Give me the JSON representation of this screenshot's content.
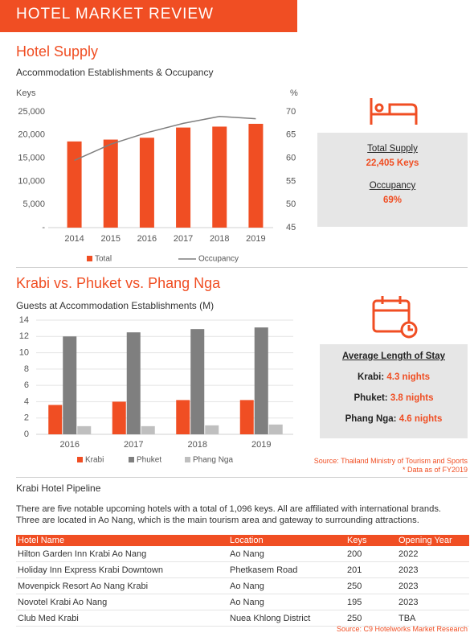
{
  "header": {
    "title": "HOTEL MARKET REVIEW"
  },
  "supply": {
    "title": "Hotel Supply",
    "stats": [
      {
        "label": "Total Supply",
        "value": "22,405 Keys"
      },
      {
        "label": "Occupancy",
        "value": "69%"
      }
    ]
  },
  "comparison": {
    "title": "Krabi vs. Phuket vs. Phang Nga",
    "stats_title": "Average Length of Stay",
    "stats": [
      {
        "label": "Krabi:",
        "value": "4.3 nights"
      },
      {
        "label": "Phuket:",
        "value": "3.8 nights"
      },
      {
        "label": "Phang Nga:",
        "value": "4.6 nights"
      }
    ],
    "source": "Source: Thailand Ministry of Tourism and Sports",
    "note": "* Data as of FY2019"
  },
  "pipeline": {
    "title": "Krabi Hotel Pipeline",
    "text": "There are five notable upcoming hotels with a total of 1,096 keys. All are affiliated with international brands. Three are located in Ao Nang, which is the main tourism area and gateway to surrounding attractions.",
    "table": {
      "columns": [
        "Hotel Name",
        "Location",
        "Keys",
        "Opening Year"
      ],
      "rows": [
        [
          "Hilton Garden Inn Krabi Ao Nang",
          "Ao Nang",
          200,
          2022
        ],
        [
          "Holiday Inn Express Krabi Downtown",
          "Phetkasem Road",
          201,
          2023
        ],
        [
          "Movenpick Resort Ao Nang Krabi",
          "Ao Nang",
          250,
          2023
        ],
        [
          "Novotel Krabi Ao Nang",
          "Ao Nang",
          195,
          2023
        ],
        [
          "Club Med Krabi",
          "Nuea Khlong District",
          250,
          "TBA"
        ]
      ]
    },
    "source": "Source: C9 Hotelworks Market Research"
  },
  "chart_data": [
    {
      "type": "bar",
      "title": "Accommodation Establishments & Occupancy",
      "y_label": "Keys",
      "y2_label": "%",
      "categories": [
        "2014",
        "2015",
        "2016",
        "2017",
        "2018",
        "2019"
      ],
      "series": [
        {
          "name": "Total",
          "color": "#f04e23",
          "values": [
            18600,
            19000,
            19400,
            21600,
            21800,
            22405
          ]
        },
        {
          "name": "Occupancy",
          "type": "line",
          "axis": "y2",
          "color": "#7f7f7f",
          "values": [
            59.5,
            63,
            65.5,
            67.5,
            69,
            68.5
          ]
        }
      ],
      "ylim": [
        0,
        25000
      ],
      "yticks": [
        {
          "value": 0,
          "label": "-"
        },
        {
          "value": 5000,
          "label": "5,000"
        },
        {
          "value": 10000,
          "label": "10,000"
        },
        {
          "value": 15000,
          "label": "15,000"
        },
        {
          "value": 20000,
          "label": "20,000"
        },
        {
          "value": 25000,
          "label": "25,000"
        }
      ],
      "y2lim": [
        45,
        70
      ],
      "y2ticks": [
        45,
        50,
        55,
        60,
        65,
        70
      ],
      "grid": false
    },
    {
      "type": "bar",
      "title": "Guests at Accommodation Establishments (M)",
      "categories": [
        "2016",
        "2017",
        "2018",
        "2019"
      ],
      "series": [
        {
          "name": "Krabi",
          "color": "#f04e23",
          "values": [
            3.6,
            4.0,
            4.2,
            4.2
          ]
        },
        {
          "name": "Phuket",
          "color": "#7f7f7f",
          "values": [
            12.0,
            12.5,
            12.9,
            13.1
          ]
        },
        {
          "name": "Phang Nga",
          "color": "#bfbfbf",
          "values": [
            1.0,
            1.0,
            1.1,
            1.2
          ]
        }
      ],
      "ylim": [
        0,
        14
      ],
      "yticks": [
        0,
        2,
        4,
        6,
        8,
        10,
        12,
        14
      ],
      "grid": true
    }
  ]
}
